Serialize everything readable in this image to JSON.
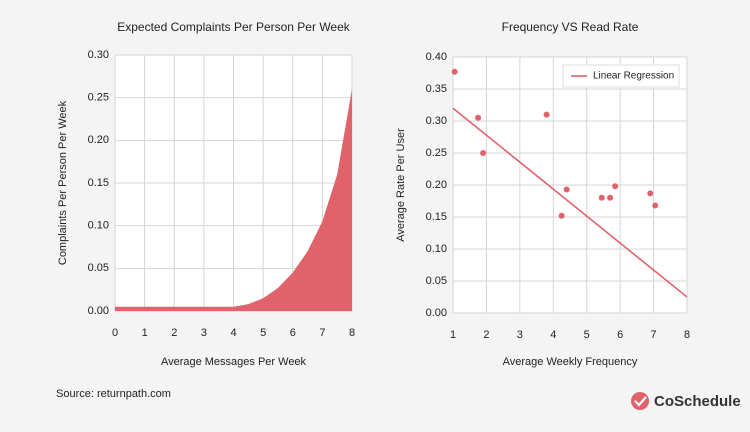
{
  "chart_data": [
    {
      "type": "area",
      "title": "Expected Complaints Per Person Per Week",
      "x_label": "Average Messages Per Week",
      "y_label": "Complaints Per Person Per Week",
      "x": [
        0,
        1,
        2,
        3,
        4,
        4.5,
        5,
        5.5,
        6,
        6.5,
        7,
        7.5,
        8
      ],
      "values": [
        0.005,
        0.005,
        0.005,
        0.005,
        0.005,
        0.008,
        0.015,
        0.027,
        0.045,
        0.07,
        0.105,
        0.16,
        0.26
      ],
      "color": "#e0636b",
      "grid": true,
      "xlim": [
        0,
        8
      ],
      "xticks": [
        0,
        1,
        2,
        3,
        4,
        5,
        6,
        7,
        8
      ],
      "ylim": [
        0,
        0.3
      ],
      "yticks": [
        {
          "value": 0,
          "label": "0.00"
        },
        0.05,
        {
          "value": 0.1,
          "label": "0.10"
        },
        0.15,
        {
          "value": 0.2,
          "label": "0.20"
        },
        0.25,
        {
          "value": 0.3,
          "label": "0.30"
        }
      ]
    },
    {
      "type": "scatter",
      "title": "Frequency VS Read Rate",
      "x_label": "Average Weekly Frequency",
      "y_label": "Average Rate Per User",
      "series": [
        {
          "color": "#e0636b",
          "x": [
            1.05,
            1.75,
            1.9,
            3.8,
            4.25,
            4.4,
            5.45,
            5.7,
            5.85,
            6.9,
            7.05
          ],
          "values": [
            0.377,
            0.305,
            0.25,
            0.31,
            0.152,
            0.193,
            0.18,
            0.18,
            0.198,
            0.187,
            0.168
          ]
        },
        {
          "name": "Linear Regression",
          "type": "line",
          "color": "#e0636b",
          "x": [
            1,
            8
          ],
          "values": [
            0.32,
            0.025
          ]
        }
      ],
      "legend": "top-right",
      "grid": true,
      "xlim": [
        1,
        8
      ],
      "xticks": [
        1,
        2,
        3,
        4,
        5,
        6,
        7,
        8
      ],
      "ylim": [
        0,
        0.4
      ],
      "yticks": [
        {
          "value": 0,
          "label": "0.00"
        },
        0.05,
        {
          "value": 0.1,
          "label": "0.10"
        },
        0.15,
        {
          "value": 0.2,
          "label": "0.20"
        },
        0.25,
        {
          "value": 0.3,
          "label": "0.30"
        },
        0.35,
        {
          "value": 0.4,
          "label": "0.40"
        }
      ]
    }
  ],
  "source": "Source: returnpath.com",
  "brand": "CoSchedule"
}
